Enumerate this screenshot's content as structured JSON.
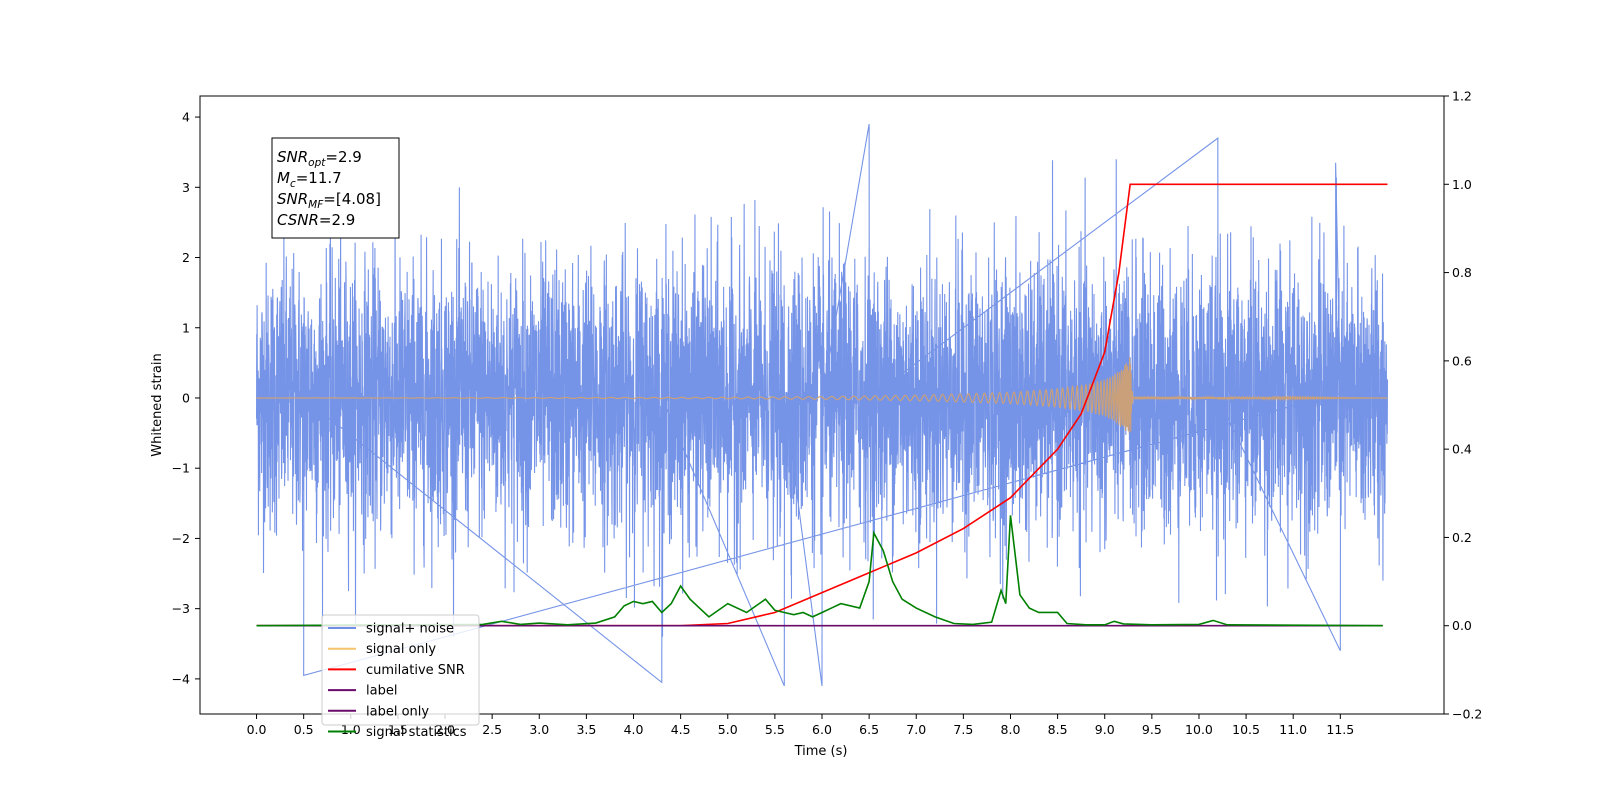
{
  "chart_data": {
    "type": "line",
    "xlabel": "Time (s)",
    "ylabel": "Whitened strain",
    "xlim": [
      -0.6,
      12.6
    ],
    "ylim": [
      -4.5,
      4.3
    ],
    "y2lim": [
      -0.2,
      1.2
    ],
    "xticks": [
      "0.0",
      "0.5",
      "1.0",
      "1.5",
      "2.0",
      "2.5",
      "3.0",
      "3.5",
      "4.0",
      "4.5",
      "5.0",
      "5.5",
      "6.0",
      "6.5",
      "7.0",
      "7.5",
      "8.0",
      "8.5",
      "9.0",
      "9.5",
      "10.0",
      "10.5",
      "11.0",
      "11.5"
    ],
    "yticks": [
      "4",
      "3",
      "2",
      "1",
      "0",
      "−1",
      "−2",
      "−3",
      "−4"
    ],
    "y2ticks": [
      "1.2",
      "1.0",
      "0.8",
      "0.6",
      "0.4",
      "0.2",
      "0.0",
      "−0.2"
    ],
    "annotation": {
      "lines": [
        {
          "label": "SNR",
          "sub": "opt",
          "value": "=2.9"
        },
        {
          "label": "M",
          "sub": "c",
          "value": "=11.7"
        },
        {
          "label": "SNR",
          "sub": "MF",
          "value": "=[4.08]"
        },
        {
          "label": "CSNR",
          "sub": "",
          "value": "=2.9"
        }
      ]
    },
    "legend": {
      "placement": "lower-left",
      "entries": [
        {
          "name": "signal+ noise",
          "color": "#6f8ee6"
        },
        {
          "name": "signal only",
          "color": "#f5c46b"
        },
        {
          "name": "cumilative SNR",
          "color": "#ff0000"
        },
        {
          "name": "label",
          "color": "#6a0a6a"
        },
        {
          "name": "label only",
          "color": "#6a0a6a"
        },
        {
          "name": "signal statistics",
          "color": "#008000"
        }
      ]
    },
    "series": [
      {
        "name": "signal+ noise",
        "axis": "left",
        "color": "#6f8ee6",
        "description": "whitened noisy strain, 0 to 12 s, amplitude roughly ±2.5 with spikes to ±4",
        "x_range": [
          0,
          12.0
        ],
        "envelope": [
          -2.8,
          2.8
        ],
        "extremes": [
          [
            0.5,
            -3.95
          ],
          [
            4.3,
            -4.05
          ],
          [
            5.6,
            -4.1
          ],
          [
            6.0,
            -4.1
          ],
          [
            6.5,
            3.9
          ],
          [
            10.2,
            3.7
          ],
          [
            11.5,
            -3.6
          ],
          [
            11.45,
            3.35
          ]
        ]
      },
      {
        "name": "signal only",
        "axis": "left",
        "color": "#c9a07a",
        "description": "chirp signal growing in amplitude, merger near 9.27 s",
        "x": [
          0.0,
          5.0,
          6.0,
          7.0,
          8.0,
          8.5,
          8.8,
          9.0,
          9.1,
          9.2,
          9.27,
          9.3,
          12.0
        ],
        "amplitude": [
          0.0,
          0.01,
          0.02,
          0.04,
          0.08,
          0.13,
          0.19,
          0.26,
          0.33,
          0.45,
          0.6,
          0.02,
          0.0
        ]
      },
      {
        "name": "cumilative SNR",
        "axis": "right",
        "color": "#ff0000",
        "x": [
          0.0,
          4.5,
          5.0,
          5.5,
          6.0,
          6.5,
          7.0,
          7.5,
          8.0,
          8.5,
          8.75,
          9.0,
          9.15,
          9.27,
          12.0
        ],
        "y": [
          0.0,
          0.0,
          0.005,
          0.03,
          0.075,
          0.12,
          0.165,
          0.22,
          0.29,
          0.4,
          0.48,
          0.62,
          0.8,
          1.0,
          1.0
        ]
      },
      {
        "name": "label",
        "axis": "right",
        "color": "#6a0a6a",
        "x": [
          0.0,
          11.95
        ],
        "y": [
          0.0,
          0.0
        ]
      },
      {
        "name": "signal statistics",
        "axis": "right",
        "color": "#008000",
        "x": [
          0.0,
          2.4,
          2.6,
          2.8,
          3.0,
          3.3,
          3.6,
          3.8,
          3.9,
          4.0,
          4.1,
          4.2,
          4.3,
          4.4,
          4.5,
          4.6,
          4.7,
          4.8,
          5.0,
          5.2,
          5.4,
          5.5,
          5.6,
          5.7,
          5.8,
          5.9,
          6.0,
          6.1,
          6.2,
          6.4,
          6.5,
          6.55,
          6.65,
          6.75,
          6.85,
          7.0,
          7.2,
          7.4,
          7.6,
          7.8,
          7.9,
          7.95,
          8.0,
          8.05,
          8.1,
          8.2,
          8.3,
          8.5,
          8.6,
          8.8,
          9.0,
          9.1,
          9.2,
          9.5,
          10.0,
          10.15,
          10.3,
          11.95
        ],
        "y": [
          0.0,
          0.003,
          0.01,
          0.003,
          0.006,
          0.002,
          0.006,
          0.02,
          0.045,
          0.055,
          0.05,
          0.055,
          0.03,
          0.05,
          0.09,
          0.06,
          0.04,
          0.02,
          0.05,
          0.03,
          0.06,
          0.035,
          0.03,
          0.025,
          0.03,
          0.02,
          0.03,
          0.04,
          0.05,
          0.04,
          0.1,
          0.21,
          0.17,
          0.1,
          0.06,
          0.04,
          0.02,
          0.005,
          0.003,
          0.008,
          0.08,
          0.05,
          0.25,
          0.16,
          0.07,
          0.04,
          0.03,
          0.03,
          0.005,
          0.002,
          0.002,
          0.01,
          0.004,
          0.002,
          0.003,
          0.012,
          0.002,
          0.0
        ]
      }
    ]
  }
}
